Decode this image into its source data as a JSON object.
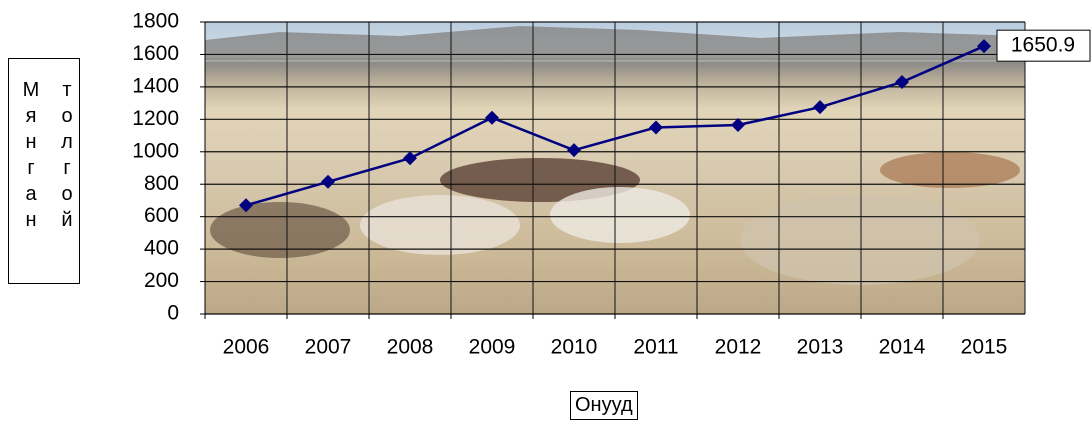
{
  "chart_data": {
    "type": "line",
    "ylabel": "Мянган толгой",
    "xlabel": "Онууд",
    "categories": [
      "2006",
      "2007",
      "2008",
      "2009",
      "2010",
      "2011",
      "2012",
      "2013",
      "2014",
      "2015"
    ],
    "series": [
      {
        "name": "Мянган толгой",
        "color": "#000080",
        "values": [
          670,
          815,
          960,
          1210,
          1010,
          1150,
          1165,
          1275,
          1430,
          1650.9
        ],
        "value_labels": [
          null,
          null,
          null,
          null,
          null,
          null,
          null,
          null,
          null,
          "1650.9"
        ]
      }
    ],
    "ylim": [
      0,
      1800
    ],
    "yticks": [
      0,
      200,
      400,
      600,
      800,
      1000,
      1200,
      1400,
      1600,
      1800
    ],
    "grid": true
  }
}
